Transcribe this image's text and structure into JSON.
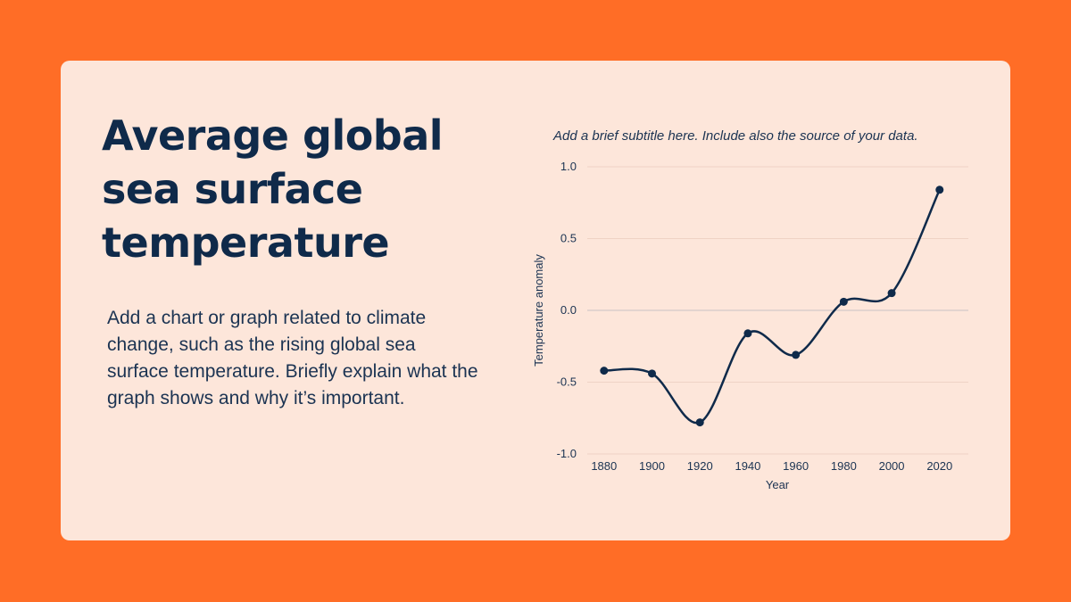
{
  "title": "Average global sea surface temperature",
  "body": "Add a chart or graph related to climate change, such as the rising global sea surface temperature. Briefly explain what the graph shows and why it’s important.",
  "colors": {
    "background": "#FF6D26",
    "card": "#FDE6DA",
    "text": "#0F2A4A",
    "line": "#0F2A4A"
  },
  "chart_data": {
    "type": "line",
    "subtitle": "Add a brief subtitle here. Include also the source of your data.",
    "xlabel": "Year",
    "ylabel": "Temperature anomaly",
    "x": [
      1880,
      1900,
      1920,
      1940,
      1960,
      1980,
      2000,
      2020
    ],
    "y_ticks": [
      "1.0",
      "0.5",
      "0.0",
      "-0.5",
      "-1.0"
    ],
    "y_tick_values": [
      1.0,
      0.5,
      0.0,
      -0.5,
      -1.0
    ],
    "series": [
      {
        "values": [
          -0.42,
          -0.44,
          -0.78,
          -0.16,
          -0.31,
          0.06,
          0.12,
          0.84
        ]
      }
    ],
    "ylim": [
      -1.0,
      1.0
    ],
    "xlim": [
      1873,
      2032
    ],
    "grid": true,
    "smooth": true
  }
}
